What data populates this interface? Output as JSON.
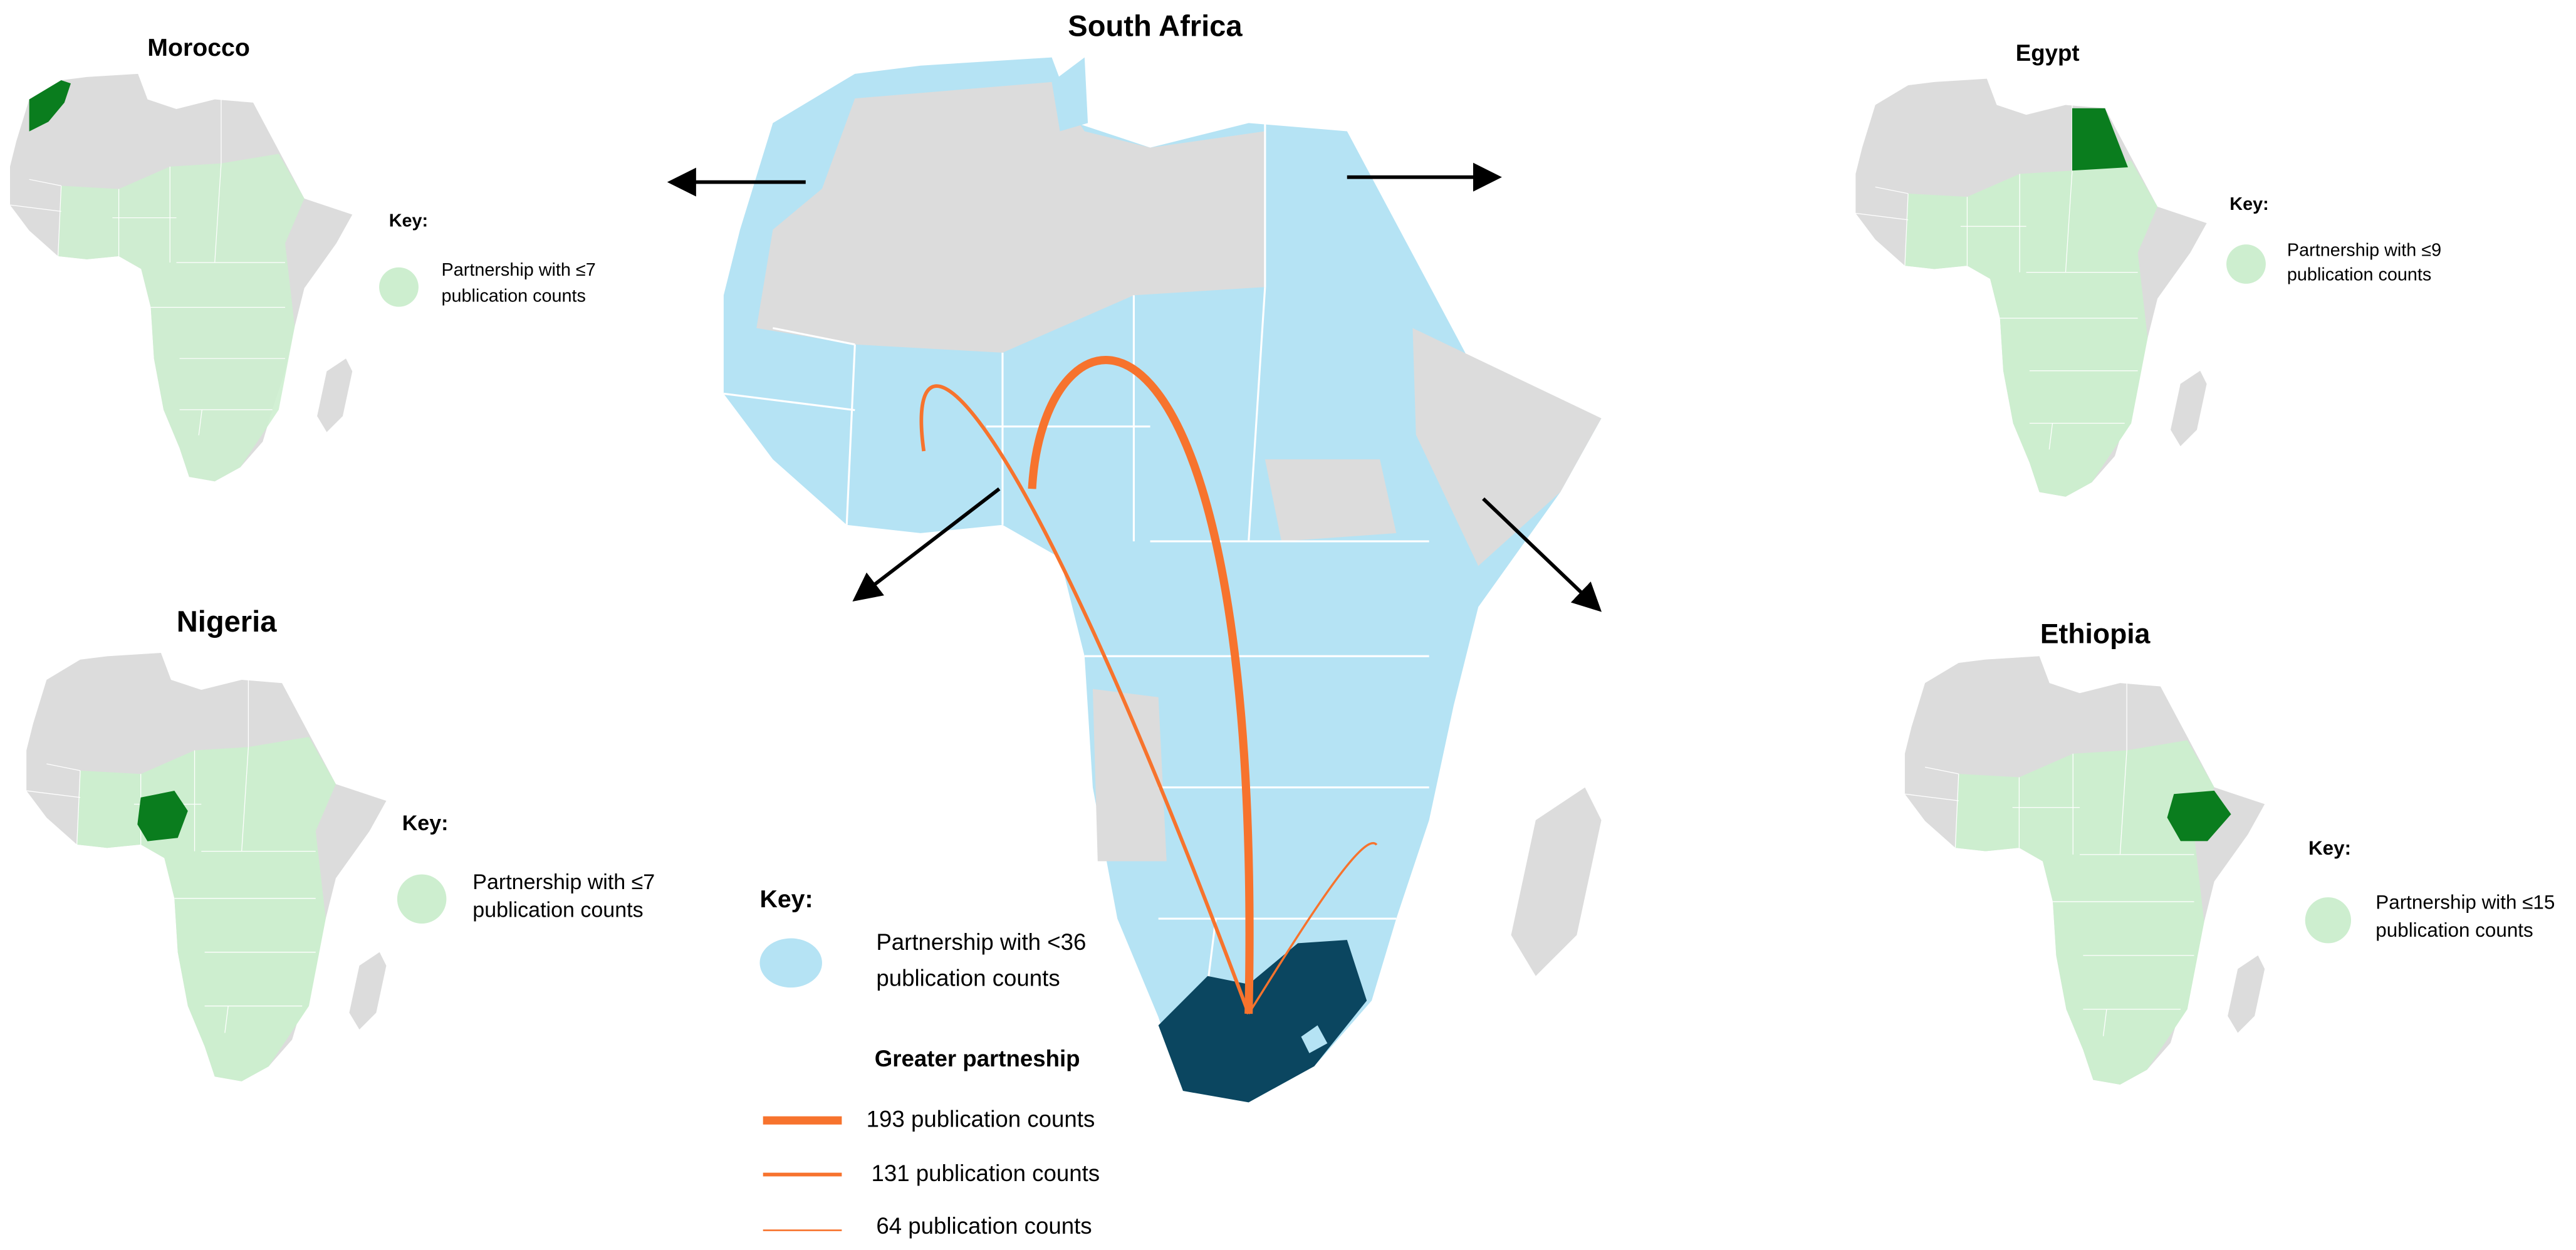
{
  "main": {
    "title": "South Africa",
    "key": {
      "label": "Key:",
      "item": [
        "Partnership with <36",
        "publication counts"
      ],
      "greater_label": "Greater partneship",
      "lines": [
        "193 publication counts",
        "131 publication counts",
        "64 publication counts"
      ]
    }
  },
  "insets": [
    {
      "title": "Morocco",
      "key_label": "Key:",
      "key_item": [
        "Partnership with ≤7",
        "publication counts"
      ]
    },
    {
      "title": "Nigeria",
      "key_label": "Key:",
      "key_item": [
        "Partnership with ≤7",
        "publication counts"
      ]
    },
    {
      "title": "Egypt",
      "key_label": "Key:",
      "key_item": [
        "Partnership with ≤9",
        "publication counts"
      ]
    },
    {
      "title": "Ethiopia",
      "key_label": "Key:",
      "key_item": [
        "Partnership with ≤15",
        "publication counts"
      ]
    }
  ]
}
